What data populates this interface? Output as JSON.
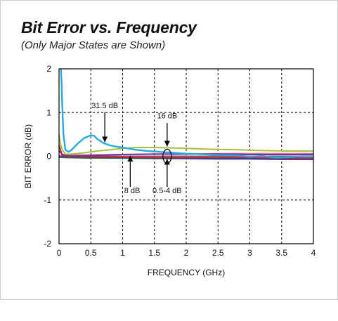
{
  "chart_data": {
    "type": "line",
    "title": "Bit Error vs. Frequency",
    "subtitle": "(Only Major States are Shown)",
    "xlabel": "FREQUENCY (GHz)",
    "ylabel": "BIT ERROR (dB)",
    "xlim": [
      0,
      4
    ],
    "ylim": [
      -2,
      2
    ],
    "grid": true,
    "x_ticks": [
      "0",
      "0.5",
      "1",
      "1.5",
      "2",
      "2.5",
      "3",
      "3.5",
      "4"
    ],
    "y_ticks": [
      "2",
      "1",
      "0",
      "-1",
      "-2"
    ],
    "series": [
      {
        "name": "31.5 dB",
        "color": "#29a9e0",
        "x": [
          0.03,
          0.04,
          0.05,
          0.07,
          0.1,
          0.15,
          0.2,
          0.3,
          0.4,
          0.5,
          0.55,
          0.6,
          0.7,
          0.8,
          0.9,
          1.0,
          1.2,
          1.4,
          1.6,
          1.8,
          2.0,
          2.2,
          2.5,
          2.8,
          3.0,
          3.2,
          3.4,
          3.6,
          3.8,
          4.0
        ],
        "y": [
          2.0,
          1.7,
          1.2,
          0.5,
          0.15,
          0.1,
          0.15,
          0.3,
          0.42,
          0.48,
          0.47,
          0.4,
          0.3,
          0.25,
          0.22,
          0.2,
          0.15,
          0.12,
          0.1,
          0.08,
          0.06,
          0.05,
          0.03,
          0.02,
          -0.01,
          0.01,
          -0.03,
          -0.02,
          0.0,
          0.0
        ]
      },
      {
        "name": "16 dB",
        "color": "#a3c13a",
        "x": [
          0,
          0.02,
          0.05,
          0.1,
          0.2,
          0.4,
          0.6,
          0.8,
          1.0,
          1.2,
          1.5,
          1.8,
          2.0,
          2.4,
          2.8,
          3.2,
          3.6,
          4.0
        ],
        "y": [
          0.5,
          0.3,
          0.15,
          0.05,
          0.05,
          0.08,
          0.12,
          0.15,
          0.18,
          0.2,
          0.2,
          0.19,
          0.18,
          0.16,
          0.15,
          0.13,
          0.12,
          0.12
        ]
      },
      {
        "name": "8 dB",
        "color": "#7b2f9e",
        "x": [
          0,
          0.05,
          0.1,
          0.2,
          0.5,
          1.0,
          1.5,
          2.0,
          2.5,
          3.0,
          3.5,
          4.0
        ],
        "y": [
          0.12,
          0.05,
          0.02,
          0.01,
          0.02,
          0.04,
          0.05,
          0.05,
          0.05,
          0.04,
          0.04,
          0.04
        ]
      },
      {
        "name": "0.5-4 dB",
        "color": "#d21f3c",
        "x": [
          0,
          0.05,
          0.1,
          0.5,
          1.0,
          1.5,
          2.0,
          2.5,
          3.0,
          3.5,
          4.0
        ],
        "y": [
          0.25,
          0.02,
          0.0,
          -0.01,
          -0.02,
          -0.03,
          -0.03,
          -0.03,
          -0.03,
          -0.04,
          -0.04
        ]
      },
      {
        "name": "",
        "color": "#2e7d32",
        "x": [
          0,
          0.1,
          0.5,
          1.0,
          1.5,
          2.0,
          2.5,
          3.0,
          3.5,
          4.0
        ],
        "y": [
          -0.02,
          -0.03,
          -0.04,
          -0.04,
          -0.05,
          -0.05,
          -0.05,
          -0.05,
          -0.05,
          -0.05
        ]
      },
      {
        "name": "",
        "color": "#1f3f9a",
        "x": [
          0,
          0.1,
          0.5,
          1.0,
          1.5,
          2.0,
          2.5,
          3.0,
          3.5,
          4.0
        ],
        "y": [
          -0.01,
          -0.01,
          -0.02,
          -0.03,
          -0.04,
          -0.05,
          -0.06,
          -0.06,
          -0.07,
          -0.07
        ]
      },
      {
        "name": "",
        "color": "#e46f91",
        "x": [
          0,
          0.1,
          0.5,
          1.0,
          1.5,
          2.0,
          2.5,
          3.0,
          3.5,
          4.0
        ],
        "y": [
          0.02,
          0.02,
          0.03,
          0.04,
          0.05,
          0.05,
          0.06,
          0.06,
          0.06,
          0.06
        ]
      },
      {
        "name": "",
        "color": "#6f6f6f",
        "x": [
          0,
          0.1,
          0.5,
          1.0,
          1.5,
          2.0,
          2.5,
          3.0,
          3.5,
          4.0
        ],
        "y": [
          0.01,
          0.0,
          0.0,
          0.0,
          0.0,
          0.0,
          0.0,
          0.0,
          0.0,
          0.0
        ]
      }
    ],
    "annotations": [
      {
        "text": "31.5 dB",
        "series": "31.5 dB"
      },
      {
        "text": "16 dB",
        "series": "16 dB"
      },
      {
        "text": "8 dB",
        "series": "8 dB"
      },
      {
        "text": "0.5-4 dB",
        "series": "0.5-4 dB"
      }
    ]
  }
}
